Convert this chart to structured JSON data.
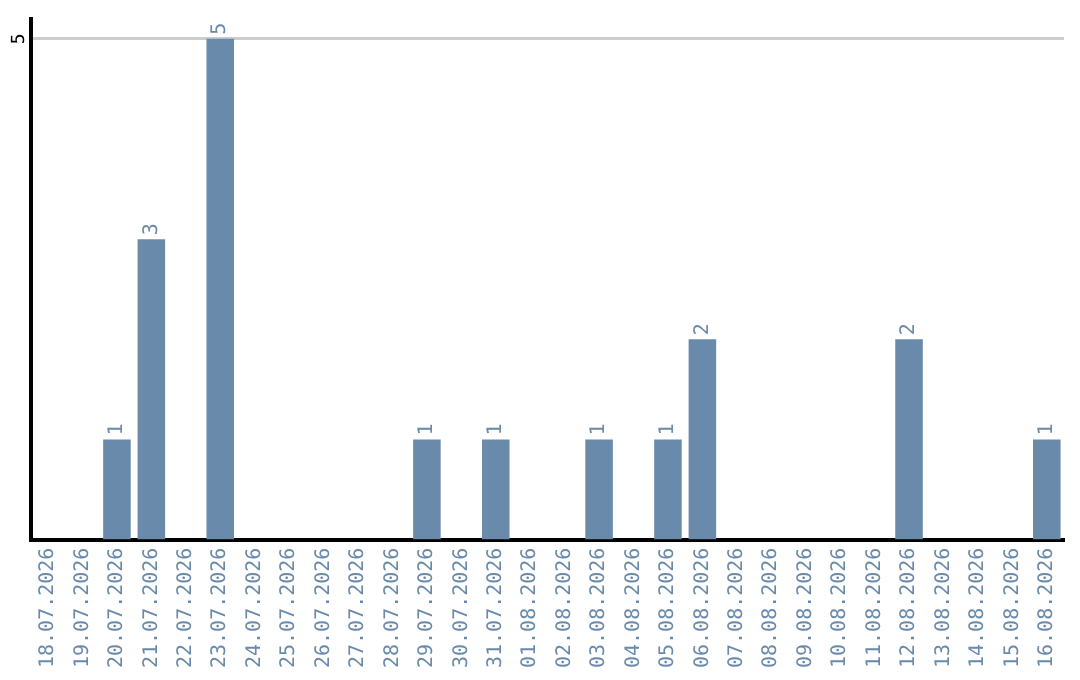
{
  "chart_data": {
    "type": "bar",
    "categories": [
      "18.07.2026",
      "19.07.2026",
      "20.07.2026",
      "21.07.2026",
      "22.07.2026",
      "23.07.2026",
      "24.07.2026",
      "25.07.2026",
      "26.07.2026",
      "27.07.2026",
      "28.07.2026",
      "29.07.2026",
      "30.07.2026",
      "31.07.2026",
      "01.08.2026",
      "02.08.2026",
      "03.08.2026",
      "04.08.2026",
      "05.08.2026",
      "06.08.2026",
      "07.08.2026",
      "08.08.2026",
      "09.08.2026",
      "10.08.2026",
      "11.08.2026",
      "12.08.2026",
      "13.08.2026",
      "14.08.2026",
      "15.08.2026",
      "16.08.2026"
    ],
    "values": [
      0,
      0,
      1,
      3,
      0,
      5,
      0,
      0,
      0,
      0,
      0,
      1,
      0,
      1,
      0,
      0,
      1,
      0,
      1,
      2,
      0,
      0,
      0,
      0,
      0,
      2,
      0,
      0,
      0,
      1
    ],
    "value_labels": [
      null,
      null,
      "1",
      "3",
      null,
      "5",
      null,
      null,
      null,
      null,
      null,
      "1",
      null,
      "1",
      null,
      null,
      "1",
      null,
      "1",
      "2",
      null,
      null,
      null,
      null,
      null,
      "2",
      null,
      null,
      null,
      "1"
    ],
    "color": "#6a8aab",
    "ylim": [
      0,
      5.2
    ],
    "yticks": [
      5
    ],
    "grid": "y"
  }
}
